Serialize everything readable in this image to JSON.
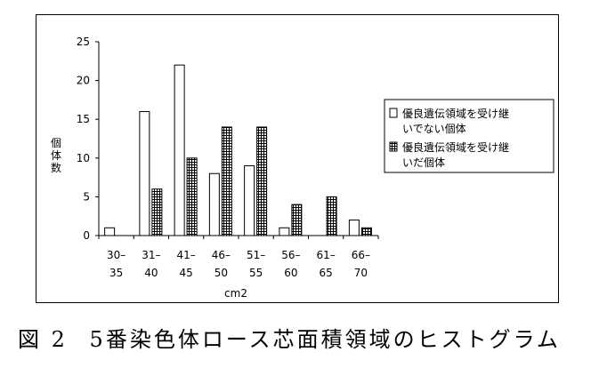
{
  "chart_data": {
    "type": "bar",
    "categories": [
      "30–35",
      "31–40",
      "41–45",
      "46–50",
      "51–55",
      "56–60",
      "61–65",
      "66–70"
    ],
    "category_lines": [
      [
        "30–",
        "35"
      ],
      [
        "31–",
        "40"
      ],
      [
        "41–",
        "45"
      ],
      [
        "46–",
        "50"
      ],
      [
        "51–",
        "55"
      ],
      [
        "56–",
        "60"
      ],
      [
        "61–",
        "65"
      ],
      [
        "66–",
        "70"
      ]
    ],
    "series": [
      {
        "name": "優良遺伝領域を受け継いでない個体",
        "legend_lines": [
          "優良遺伝領域を受け継",
          "いでない個体"
        ],
        "values": [
          1,
          16,
          22,
          8,
          9,
          1,
          0,
          2
        ],
        "fill": "white"
      },
      {
        "name": "優良遺伝領域を受け継いだ個体",
        "legend_lines": [
          "優良遺伝領域を受け継",
          "いだ個体"
        ],
        "values": [
          0,
          6,
          10,
          14,
          14,
          4,
          5,
          1
        ],
        "fill": "hatched"
      }
    ],
    "xlabel": "cm2",
    "ylabel": "個体数",
    "ylim": [
      0,
      25
    ],
    "yticks": [
      0,
      5,
      10,
      15,
      20,
      25
    ],
    "legend_position": "right",
    "grid": false
  },
  "caption": {
    "figure_label": "図 2",
    "text": "5番染色体ロース芯面積領域のヒストグラム"
  }
}
